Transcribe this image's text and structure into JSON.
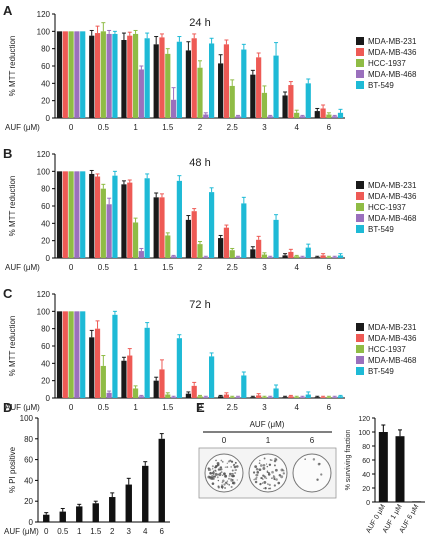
{
  "series_names": [
    "MDA-MB-231",
    "MDA-MB-436",
    "HCC-1937",
    "MDA-MB-468",
    "BT-549"
  ],
  "colors": {
    "MDA-MB-231": "#1a1a1a",
    "MDA-MB-436": "#ee5a55",
    "HCC-1937": "#8fbc45",
    "MDA-MB-468": "#9a70bd",
    "BT-549": "#1ebad6",
    "pi": "#111111",
    "frac": "#111111"
  },
  "chart_data": [
    {
      "panel": "A",
      "type": "bar",
      "title": "24 h",
      "ylabel": "% MTT reduction",
      "xlabel": "AUF (μM)",
      "categories": [
        "0",
        "0.5",
        "1",
        "1.5",
        "2",
        "2.5",
        "3",
        "4",
        "6"
      ],
      "ylim": [
        0,
        120
      ],
      "yticks": [
        0,
        20,
        40,
        60,
        80,
        100,
        120
      ],
      "series": [
        {
          "name": "MDA-MB-231",
          "values": [
            100,
            95,
            90,
            85,
            78,
            63,
            50,
            26,
            8
          ],
          "errors": [
            0,
            6,
            8,
            9,
            10,
            10,
            5,
            4,
            3
          ]
        },
        {
          "name": "MDA-MB-436",
          "values": [
            100,
            98,
            95,
            93,
            92,
            85,
            70,
            38,
            11
          ],
          "errors": [
            0,
            8,
            4,
            4,
            5,
            5,
            5,
            4,
            4
          ]
        },
        {
          "name": "HCC-1937",
          "values": [
            100,
            100,
            97,
            74,
            58,
            37,
            29,
            6,
            4
          ],
          "errors": [
            0,
            10,
            4,
            6,
            8,
            7,
            8,
            3,
            2
          ]
        },
        {
          "name": "MDA-MB-468",
          "values": [
            100,
            97,
            56,
            21,
            4,
            2,
            2,
            2,
            2
          ],
          "errors": [
            0,
            4,
            4,
            14,
            2,
            1,
            1,
            1,
            1
          ]
        },
        {
          "name": "BT-549",
          "values": [
            100,
            97,
            92,
            88,
            86,
            79,
            72,
            40,
            6
          ],
          "errors": [
            0,
            3,
            6,
            6,
            6,
            6,
            15,
            5,
            4
          ]
        }
      ]
    },
    {
      "panel": "B",
      "type": "bar",
      "title": "48 h",
      "ylabel": "% MTT reduction",
      "xlabel": "AUF (μM)",
      "categories": [
        "0",
        "0.5",
        "1",
        "1.5",
        "2",
        "2.5",
        "3",
        "4",
        "6"
      ],
      "ylim": [
        0,
        120
      ],
      "yticks": [
        0,
        20,
        40,
        60,
        80,
        100,
        120
      ],
      "series": [
        {
          "name": "MDA-MB-231",
          "values": [
            100,
            97,
            85,
            70,
            44,
            23,
            10,
            3,
            1
          ],
          "errors": [
            0,
            4,
            4,
            5,
            5,
            3,
            3,
            2,
            1
          ]
        },
        {
          "name": "MDA-MB-436",
          "values": [
            100,
            94,
            87,
            70,
            54,
            35,
            21,
            7,
            3
          ],
          "errors": [
            0,
            3,
            3,
            4,
            3,
            3,
            4,
            3,
            2
          ]
        },
        {
          "name": "HCC-1937",
          "values": [
            100,
            80,
            41,
            26,
            16,
            9,
            4,
            2,
            1
          ],
          "errors": [
            0,
            5,
            5,
            3,
            3,
            2,
            2,
            1,
            1
          ]
        },
        {
          "name": "MDA-MB-468",
          "values": [
            100,
            62,
            8,
            2,
            1,
            1,
            1,
            1,
            1
          ],
          "errors": [
            0,
            7,
            3,
            1,
            1,
            1,
            1,
            1,
            1
          ]
        },
        {
          "name": "BT-549",
          "values": [
            100,
            95,
            92,
            89,
            76,
            63,
            44,
            12,
            3
          ],
          "errors": [
            0,
            5,
            5,
            6,
            5,
            7,
            6,
            4,
            2
          ]
        }
      ]
    },
    {
      "panel": "C",
      "type": "bar",
      "title": "72 h",
      "ylabel": "% MTT reduction",
      "xlabel": "AUF (μM)",
      "categories": [
        "0",
        "0.5",
        "1",
        "1.5",
        "2",
        "2.5",
        "3",
        "4",
        "6"
      ],
      "ylim": [
        0,
        120
      ],
      "yticks": [
        0,
        20,
        40,
        60,
        80,
        100,
        120
      ],
      "series": [
        {
          "name": "MDA-MB-231",
          "values": [
            100,
            70,
            43,
            20,
            5,
            2,
            1,
            1,
            1
          ],
          "errors": [
            0,
            8,
            4,
            4,
            2,
            1,
            1,
            1,
            1
          ]
        },
        {
          "name": "MDA-MB-436",
          "values": [
            100,
            80,
            49,
            33,
            14,
            4,
            3,
            2,
            1
          ],
          "errors": [
            0,
            9,
            8,
            11,
            4,
            2,
            2,
            1,
            1
          ]
        },
        {
          "name": "HCC-1937",
          "values": [
            100,
            37,
            11,
            4,
            2,
            1,
            1,
            1,
            1
          ],
          "errors": [
            0,
            12,
            3,
            2,
            1,
            1,
            1,
            1,
            1
          ]
        },
        {
          "name": "MDA-MB-468",
          "values": [
            100,
            6,
            2,
            1,
            1,
            1,
            1,
            1,
            1
          ],
          "errors": [
            0,
            2,
            1,
            1,
            1,
            1,
            1,
            1,
            1
          ]
        },
        {
          "name": "BT-549",
          "values": [
            100,
            96,
            81,
            69,
            48,
            26,
            11,
            4,
            2
          ],
          "errors": [
            0,
            4,
            6,
            4,
            4,
            4,
            4,
            3,
            1
          ]
        }
      ]
    },
    {
      "panel": "D",
      "type": "bar",
      "title": "",
      "ylabel": "% PI positive",
      "xlabel": "AUF (μM)",
      "categories": [
        "0",
        "0.5",
        "1",
        "1.5",
        "2",
        "3",
        "4",
        "6"
      ],
      "ylim": [
        0,
        100
      ],
      "yticks": [
        0,
        20,
        40,
        60,
        80,
        100
      ],
      "series": [
        {
          "name": "",
          "values": [
            7,
            10,
            15,
            18,
            24,
            36,
            54,
            80
          ],
          "errors": [
            2,
            3,
            2,
            2,
            4,
            6,
            4,
            5
          ]
        }
      ]
    },
    {
      "panel": "E",
      "type": "bar",
      "title": "",
      "ylabel": "% surviving fraction",
      "xlabel": "",
      "categories": [
        "AUF 0 μM",
        "AUF 1 μM",
        "AUF 6 μM"
      ],
      "ylim": [
        0,
        120
      ],
      "yticks": [
        0,
        20,
        40,
        60,
        80,
        100,
        120
      ],
      "series": [
        {
          "name": "",
          "values": [
            100,
            94,
            1
          ],
          "errors": [
            10,
            9,
            0
          ]
        }
      ]
    }
  ],
  "plates": {
    "header": "AUF (μM)",
    "labels": [
      "0",
      "1",
      "6"
    ],
    "colony_density": [
      0.9,
      0.6,
      0.05
    ]
  }
}
